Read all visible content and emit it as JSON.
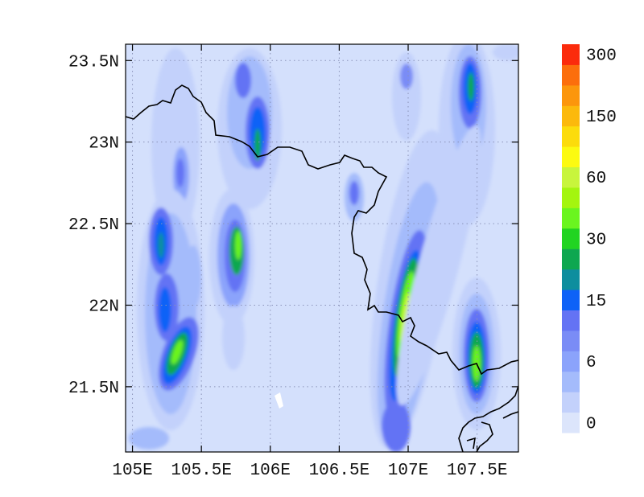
{
  "map": {
    "lon_range": [
      104.95,
      107.8
    ],
    "lat_range": [
      21.1,
      23.6
    ],
    "lon_ticks": [
      {
        "value": 105.0,
        "label": "105E"
      },
      {
        "value": 105.5,
        "label": "105.5E"
      },
      {
        "value": 106.0,
        "label": "106E"
      },
      {
        "value": 106.5,
        "label": "106.5E"
      },
      {
        "value": 107.0,
        "label": "107E"
      },
      {
        "value": 107.5,
        "label": "107.5E"
      }
    ],
    "lat_ticks": [
      {
        "value": 21.5,
        "label": "21.5N"
      },
      {
        "value": 22.0,
        "label": "22N"
      },
      {
        "value": 22.5,
        "label": "22.5N"
      },
      {
        "value": 23.0,
        "label": "23N"
      },
      {
        "value": 23.5,
        "label": "23.5N"
      }
    ],
    "grid": true,
    "background_color": "#d4e0fc",
    "border_color": "#000000",
    "features": [
      {
        "name": "west-band-north",
        "lon": 105.3,
        "lat": 23.2,
        "level": 4
      },
      {
        "name": "west-band-mid",
        "lon": 105.3,
        "lat": 22.8,
        "level": 5
      },
      {
        "name": "west-band-south-1",
        "lon": 105.17,
        "lat": 22.37,
        "level": 10
      },
      {
        "name": "west-band-south-2",
        "lon": 105.2,
        "lat": 21.98,
        "level": 8
      },
      {
        "name": "west-band-south-3",
        "lon": 105.33,
        "lat": 21.7,
        "level": 12
      },
      {
        "name": "central-band-north",
        "lon": 105.87,
        "lat": 23.1,
        "level": 10
      },
      {
        "name": "central-band-south",
        "lon": 105.75,
        "lat": 22.33,
        "level": 12
      },
      {
        "name": "east-band-north",
        "lon": 107.0,
        "lat": 23.45,
        "level": 5
      },
      {
        "name": "east-band-south",
        "lon": 106.98,
        "lat": 21.95,
        "level": 14
      },
      {
        "name": "far-east-band-north",
        "lon": 107.5,
        "lat": 23.38,
        "level": 10
      },
      {
        "name": "far-east-band-south",
        "lon": 107.5,
        "lat": 21.68,
        "level": 12
      }
    ]
  },
  "colorbar": {
    "colors": [
      "#dce5fb",
      "#c3d1fb",
      "#a4bbfb",
      "#8ba3fb",
      "#7a8cf6",
      "#6473f4",
      "#0e62f7",
      "#0e8e9e",
      "#0ea750",
      "#21d421",
      "#6af51f",
      "#a4f50f",
      "#c8f53c",
      "#fcfa11",
      "#fcdc0c",
      "#fcb90c",
      "#fc960c",
      "#fc6e0c",
      "#fb2b0c"
    ],
    "labels": [
      {
        "index": 0,
        "text": "0"
      },
      {
        "index": 3,
        "text": "6"
      },
      {
        "index": 6,
        "text": "15"
      },
      {
        "index": 9,
        "text": "30"
      },
      {
        "index": 12,
        "text": "60"
      },
      {
        "index": 15,
        "text": "150"
      },
      {
        "index": 18,
        "text": "300"
      }
    ]
  }
}
